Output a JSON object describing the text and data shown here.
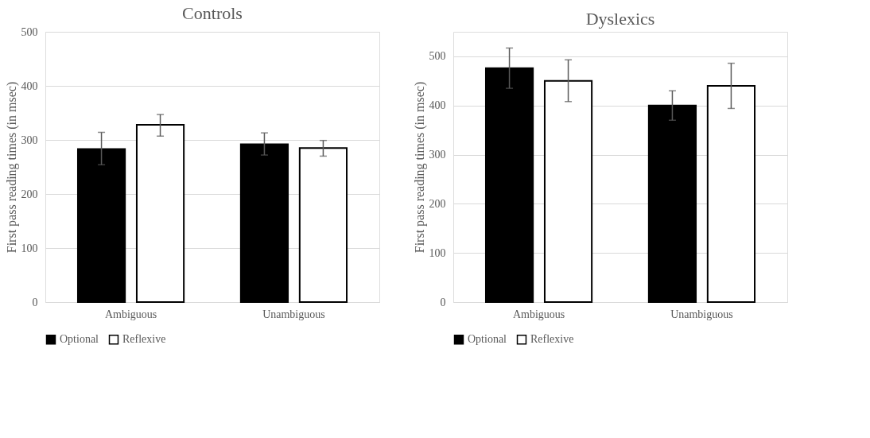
{
  "chart_data": [
    {
      "type": "bar",
      "title": "Controls",
      "ylabel": "First pass reading times (in msec)",
      "categories": [
        "Ambiguous",
        "Unambiguous"
      ],
      "ylim": [
        0,
        500
      ],
      "yticks": [
        0,
        100,
        200,
        300,
        400,
        500
      ],
      "grid": "y",
      "legend": "bottom",
      "series": [
        {
          "name": "Optional",
          "color": "#000000",
          "values": [
            283,
            292
          ],
          "errors": [
            [
              254,
              314
            ],
            [
              272,
              313
            ]
          ]
        },
        {
          "name": "Reflexive",
          "color": "#ffffff",
          "values": [
            328,
            285
          ],
          "errors": [
            [
              307,
              347
            ],
            [
              270,
              299
            ]
          ]
        }
      ]
    },
    {
      "type": "bar",
      "title": "Dyslexics",
      "ylabel": "First pass reading times (in msec)",
      "categories": [
        "Ambiguous",
        "Unambiguous"
      ],
      "ylim": [
        0,
        550
      ],
      "yticks": [
        0,
        100,
        200,
        300,
        400,
        500
      ],
      "grid": "y",
      "legend": "bottom",
      "series": [
        {
          "name": "Optional",
          "color": "#000000",
          "values": [
            476,
            400
          ],
          "errors": [
            [
              435,
              517
            ],
            [
              370,
              430
            ]
          ]
        },
        {
          "name": "Reflexive",
          "color": "#ffffff",
          "values": [
            450,
            440
          ],
          "errors": [
            [
              408,
              493
            ],
            [
              394,
              486
            ]
          ]
        }
      ]
    }
  ]
}
